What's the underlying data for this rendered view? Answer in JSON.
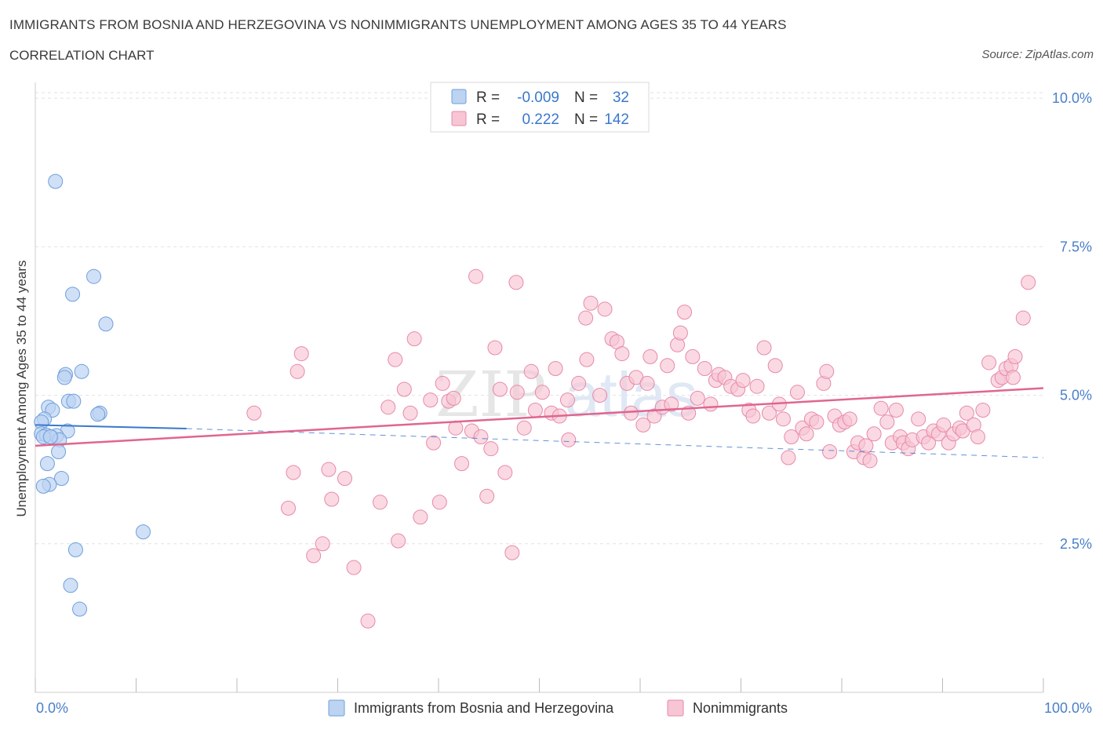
{
  "header": {
    "title": "IMMIGRANTS FROM BOSNIA AND HERZEGOVINA VS NONIMMIGRANTS UNEMPLOYMENT AMONG AGES 35 TO 44 YEARS",
    "subtitle": "CORRELATION CHART",
    "source": "Source: ZipAtlas.com"
  },
  "colors": {
    "blue_fill": "#bcd3f2",
    "blue_stroke": "#6f9fdb",
    "blue_line": "#3a78cc",
    "pink_fill": "#f7c5d4",
    "pink_stroke": "#e78aa8",
    "pink_line": "#e0668f",
    "label_blue": "#4a7fc9"
  },
  "legend_box": {
    "rows": [
      {
        "r_label": "R =",
        "r_value": "-0.009",
        "n_label": "N =",
        "n_value": "32"
      },
      {
        "r_label": "R =",
        "r_value": "0.222",
        "n_label": "N =",
        "n_value": "142"
      }
    ]
  },
  "watermark": {
    "zip": "ZIP",
    "atlas": "atlas"
  },
  "chart_data": {
    "type": "scatter",
    "title": "IMMIGRANTS FROM BOSNIA AND HERZEGOVINA VS NONIMMIGRANTS UNEMPLOYMENT AMONG AGES 35 TO 44 YEARS",
    "subtitle": "CORRELATION CHART",
    "xlabel": "",
    "ylabel": "Unemployment Among Ages 35 to 44 years",
    "xlim": [
      0,
      100
    ],
    "ylim": [
      0,
      10.2
    ],
    "x_tick_labels": [
      "0.0%",
      "100.0%"
    ],
    "y_ticks": [
      2.5,
      5.0,
      7.5,
      10.0
    ],
    "y_tick_labels": [
      "2.5%",
      "5.0%",
      "7.5%",
      "10.0%"
    ],
    "grid": true,
    "legend_position": "bottom",
    "series": [
      {
        "name": "Immigrants from Bosnia and Herzegovina",
        "color": "blue",
        "r": -0.009,
        "n": 32,
        "trend": {
          "x": [
            0,
            15
          ],
          "y": [
            4.5,
            4.44
          ],
          "dashed_extension_to_x": 100,
          "dashed_end_y": 3.95
        },
        "points": [
          [
            2.0,
            8.6
          ],
          [
            5.8,
            7.0
          ],
          [
            3.7,
            6.7
          ],
          [
            7.0,
            6.2
          ],
          [
            4.6,
            5.4
          ],
          [
            3.0,
            5.35
          ],
          [
            2.9,
            5.3
          ],
          [
            3.3,
            4.9
          ],
          [
            3.8,
            4.9
          ],
          [
            1.3,
            4.8
          ],
          [
            1.7,
            4.75
          ],
          [
            6.4,
            4.7
          ],
          [
            6.2,
            4.68
          ],
          [
            0.9,
            4.6
          ],
          [
            0.6,
            4.55
          ],
          [
            0.6,
            4.35
          ],
          [
            1.1,
            4.33
          ],
          [
            1.6,
            4.3
          ],
          [
            3.2,
            4.4
          ],
          [
            2.1,
            4.32
          ],
          [
            0.8,
            4.3
          ],
          [
            2.4,
            4.25
          ],
          [
            2.3,
            4.05
          ],
          [
            1.2,
            3.85
          ],
          [
            2.6,
            3.6
          ],
          [
            1.4,
            3.5
          ],
          [
            0.8,
            3.47
          ],
          [
            10.7,
            2.7
          ],
          [
            4.0,
            2.4
          ],
          [
            3.5,
            1.8
          ],
          [
            4.4,
            1.4
          ],
          [
            1.5,
            4.3
          ]
        ]
      },
      {
        "name": "Nonimmigrants",
        "color": "pink",
        "r": 0.222,
        "n": 142,
        "trend": {
          "x": [
            0,
            100
          ],
          "y": [
            4.15,
            5.12
          ]
        },
        "points": [
          [
            21.7,
            4.7
          ],
          [
            26.4,
            5.7
          ],
          [
            26.0,
            5.4
          ],
          [
            25.6,
            3.7
          ],
          [
            25.1,
            3.1
          ],
          [
            27.6,
            2.3
          ],
          [
            28.5,
            2.5
          ],
          [
            29.1,
            3.75
          ],
          [
            29.4,
            3.25
          ],
          [
            30.7,
            3.6
          ],
          [
            31.6,
            2.1
          ],
          [
            33.0,
            1.2
          ],
          [
            34.2,
            3.2
          ],
          [
            35.0,
            4.8
          ],
          [
            35.7,
            5.6
          ],
          [
            36.0,
            2.55
          ],
          [
            36.6,
            5.1
          ],
          [
            37.2,
            4.7
          ],
          [
            37.6,
            5.95
          ],
          [
            38.2,
            2.95
          ],
          [
            39.2,
            4.92
          ],
          [
            39.5,
            4.2
          ],
          [
            40.1,
            3.2
          ],
          [
            40.4,
            5.2
          ],
          [
            41.0,
            4.9
          ],
          [
            41.5,
            4.95
          ],
          [
            41.7,
            4.45
          ],
          [
            42.3,
            3.85
          ],
          [
            43.3,
            4.4
          ],
          [
            43.7,
            7.0
          ],
          [
            44.2,
            4.3
          ],
          [
            44.8,
            3.3
          ],
          [
            45.2,
            4.1
          ],
          [
            45.6,
            5.8
          ],
          [
            46.1,
            5.1
          ],
          [
            46.6,
            3.7
          ],
          [
            47.3,
            2.35
          ],
          [
            47.7,
            6.9
          ],
          [
            47.8,
            5.05
          ],
          [
            48.5,
            4.45
          ],
          [
            49.2,
            5.4
          ],
          [
            49.6,
            4.75
          ],
          [
            50.3,
            5.05
          ],
          [
            51.2,
            4.7
          ],
          [
            51.6,
            5.45
          ],
          [
            52.0,
            4.65
          ],
          [
            52.8,
            4.92
          ],
          [
            52.9,
            4.25
          ],
          [
            53.9,
            5.2
          ],
          [
            54.6,
            6.3
          ],
          [
            54.7,
            5.6
          ],
          [
            55.1,
            6.55
          ],
          [
            56.0,
            5.0
          ],
          [
            56.5,
            6.45
          ],
          [
            57.2,
            5.95
          ],
          [
            57.7,
            5.9
          ],
          [
            58.2,
            5.7
          ],
          [
            58.7,
            5.2
          ],
          [
            59.1,
            4.7
          ],
          [
            59.6,
            5.3
          ],
          [
            60.3,
            4.5
          ],
          [
            60.7,
            5.2
          ],
          [
            61.0,
            5.65
          ],
          [
            61.4,
            4.65
          ],
          [
            62.2,
            4.8
          ],
          [
            62.7,
            5.5
          ],
          [
            63.1,
            4.85
          ],
          [
            63.7,
            5.85
          ],
          [
            64.0,
            6.05
          ],
          [
            64.4,
            6.4
          ],
          [
            64.8,
            4.7
          ],
          [
            65.2,
            5.65
          ],
          [
            65.7,
            4.95
          ],
          [
            66.4,
            5.45
          ],
          [
            67.0,
            4.85
          ],
          [
            67.5,
            5.25
          ],
          [
            67.8,
            5.35
          ],
          [
            68.4,
            5.3
          ],
          [
            69.0,
            5.15
          ],
          [
            69.7,
            5.1
          ],
          [
            70.2,
            5.25
          ],
          [
            70.8,
            4.75
          ],
          [
            71.2,
            4.65
          ],
          [
            71.6,
            5.15
          ],
          [
            72.3,
            5.8
          ],
          [
            72.8,
            4.7
          ],
          [
            73.4,
            5.5
          ],
          [
            73.8,
            4.85
          ],
          [
            74.2,
            4.6
          ],
          [
            74.7,
            3.95
          ],
          [
            75.0,
            4.3
          ],
          [
            75.6,
            5.05
          ],
          [
            76.1,
            4.45
          ],
          [
            76.5,
            4.35
          ],
          [
            77.0,
            4.6
          ],
          [
            77.5,
            4.55
          ],
          [
            78.2,
            5.2
          ],
          [
            78.5,
            5.4
          ],
          [
            78.8,
            4.05
          ],
          [
            79.3,
            4.65
          ],
          [
            79.8,
            4.5
          ],
          [
            80.3,
            4.55
          ],
          [
            80.8,
            4.6
          ],
          [
            81.2,
            4.05
          ],
          [
            81.6,
            4.2
          ],
          [
            82.2,
            3.95
          ],
          [
            82.4,
            4.15
          ],
          [
            82.8,
            3.9
          ],
          [
            83.2,
            4.35
          ],
          [
            83.9,
            4.78
          ],
          [
            84.5,
            4.55
          ],
          [
            85.0,
            4.2
          ],
          [
            85.4,
            4.75
          ],
          [
            85.8,
            4.3
          ],
          [
            86.1,
            4.2
          ],
          [
            86.6,
            4.1
          ],
          [
            87.0,
            4.25
          ],
          [
            87.6,
            4.6
          ],
          [
            88.1,
            4.3
          ],
          [
            88.6,
            4.2
          ],
          [
            89.1,
            4.4
          ],
          [
            89.6,
            4.35
          ],
          [
            90.1,
            4.5
          ],
          [
            90.6,
            4.2
          ],
          [
            91.1,
            4.35
          ],
          [
            91.7,
            4.45
          ],
          [
            92.0,
            4.4
          ],
          [
            92.4,
            4.7
          ],
          [
            93.1,
            4.5
          ],
          [
            93.5,
            4.3
          ],
          [
            94.0,
            4.75
          ],
          [
            94.6,
            5.55
          ],
          [
            95.5,
            5.25
          ],
          [
            95.9,
            5.3
          ],
          [
            96.3,
            5.45
          ],
          [
            96.8,
            5.5
          ],
          [
            97.2,
            5.65
          ],
          [
            98.0,
            6.3
          ],
          [
            98.5,
            6.9
          ],
          [
            97.0,
            5.3
          ]
        ]
      }
    ]
  },
  "bottom_legend": [
    {
      "label": "Immigrants from Bosnia and Herzegovina"
    },
    {
      "label": "Nonimmigrants"
    }
  ]
}
